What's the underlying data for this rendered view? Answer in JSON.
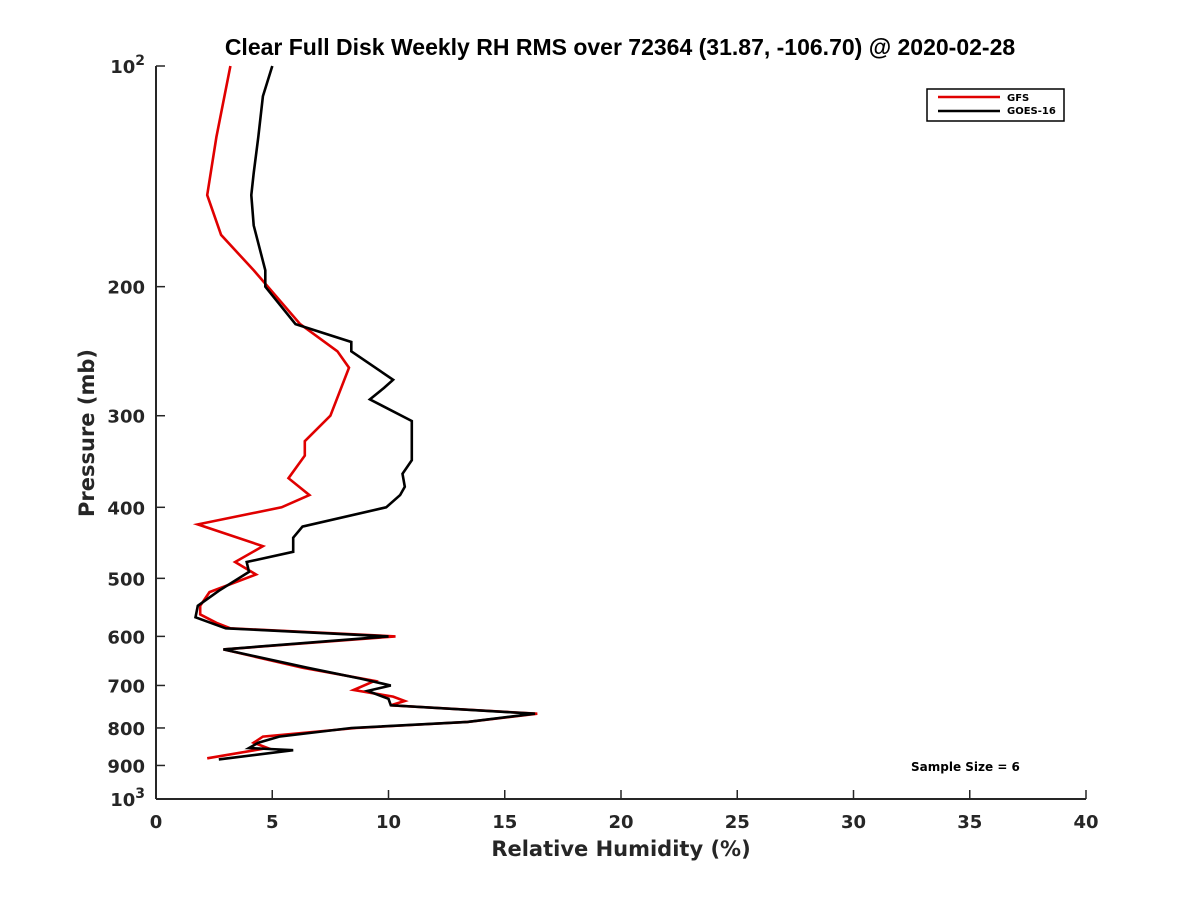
{
  "chart_data": {
    "type": "line",
    "title": "Clear Full Disk Weekly RH RMS over 72364 (31.87, -106.70) @ 2020-02-28",
    "xlabel": "Relative Humidity (%)",
    "ylabel": "Pressure (mb)",
    "xlim": [
      0,
      40
    ],
    "ylim": [
      100,
      1000
    ],
    "y_scale": "log",
    "y_reversed": true,
    "x_ticks": [
      0,
      5,
      10,
      15,
      20,
      25,
      30,
      35,
      40
    ],
    "x_tick_labels": [
      "0",
      "5",
      "10",
      "15",
      "20",
      "25",
      "30",
      "35",
      "40"
    ],
    "y_ticks": [
      100,
      200,
      300,
      400,
      500,
      600,
      700,
      800,
      900,
      1000
    ],
    "y_tick_labels": [
      {
        "base": "10",
        "exp": "2"
      },
      {
        "base": "200"
      },
      {
        "base": "300"
      },
      {
        "base": "400"
      },
      {
        "base": "500"
      },
      {
        "base": "600"
      },
      {
        "base": "700"
      },
      {
        "base": "800"
      },
      {
        "base": "900"
      },
      {
        "base": "10",
        "exp": "3"
      }
    ],
    "grid": false,
    "legend_position": "top-right",
    "annotation": "Sample Size = 6",
    "series": [
      {
        "name": "GFS",
        "color": "#e00000",
        "points": [
          [
            3.2,
            100
          ],
          [
            2.6,
            125
          ],
          [
            2.2,
            150
          ],
          [
            2.8,
            170
          ],
          [
            4.2,
            190
          ],
          [
            6.2,
            225
          ],
          [
            7.8,
            245
          ],
          [
            8.3,
            258
          ],
          [
            7.5,
            300
          ],
          [
            6.4,
            325
          ],
          [
            6.4,
            340
          ],
          [
            5.7,
            365
          ],
          [
            6.6,
            385
          ],
          [
            5.4,
            400
          ],
          [
            1.8,
            422
          ],
          [
            4.6,
            452
          ],
          [
            3.4,
            475
          ],
          [
            4.3,
            494
          ],
          [
            2.3,
            522
          ],
          [
            1.9,
            545
          ],
          [
            1.9,
            560
          ],
          [
            2.6,
            575
          ],
          [
            3.2,
            585
          ],
          [
            10.3,
            600
          ],
          [
            2.9,
            625
          ],
          [
            6.3,
            662
          ],
          [
            9.4,
            690
          ],
          [
            8.5,
            710
          ],
          [
            10.2,
            725
          ],
          [
            10.7,
            735
          ],
          [
            10.1,
            745
          ],
          [
            16.4,
            765
          ],
          [
            13.4,
            785
          ],
          [
            8.6,
            800
          ],
          [
            4.6,
            822
          ],
          [
            4.2,
            838
          ],
          [
            4.8,
            852
          ],
          [
            2.2,
            880
          ]
        ]
      },
      {
        "name": "GOES-16",
        "color": "#000000",
        "points": [
          [
            5.0,
            100
          ],
          [
            4.6,
            110
          ],
          [
            4.4,
            125
          ],
          [
            4.2,
            140
          ],
          [
            4.1,
            150
          ],
          [
            4.2,
            165
          ],
          [
            4.7,
            190
          ],
          [
            4.7,
            200
          ],
          [
            6.0,
            225
          ],
          [
            8.4,
            238
          ],
          [
            8.4,
            245
          ],
          [
            10.2,
            268
          ],
          [
            9.8,
            275
          ],
          [
            9.2,
            285
          ],
          [
            11.0,
            305
          ],
          [
            11.0,
            320
          ],
          [
            11.0,
            345
          ],
          [
            10.6,
            360
          ],
          [
            10.7,
            375
          ],
          [
            10.5,
            385
          ],
          [
            9.9,
            400
          ],
          [
            6.3,
            425
          ],
          [
            5.9,
            440
          ],
          [
            5.9,
            460
          ],
          [
            3.9,
            475
          ],
          [
            4.0,
            490
          ],
          [
            2.7,
            520
          ],
          [
            1.8,
            545
          ],
          [
            1.7,
            565
          ],
          [
            3.0,
            585
          ],
          [
            10.0,
            600
          ],
          [
            2.9,
            625
          ],
          [
            6.5,
            662
          ],
          [
            8.8,
            685
          ],
          [
            10.1,
            700
          ],
          [
            9.1,
            712
          ],
          [
            10.0,
            730
          ],
          [
            10.1,
            745
          ],
          [
            16.3,
            765
          ],
          [
            13.4,
            785
          ],
          [
            8.4,
            800
          ],
          [
            5.3,
            822
          ],
          [
            4.4,
            838
          ],
          [
            4.0,
            852
          ],
          [
            5.9,
            858
          ],
          [
            2.7,
            883
          ]
        ]
      }
    ]
  }
}
